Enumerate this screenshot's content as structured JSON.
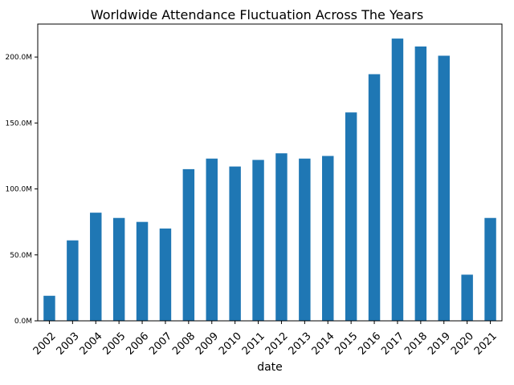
{
  "chart_data": {
    "type": "bar",
    "title": "Worldwide Attendance Fluctuation Across The Years",
    "xlabel": "date",
    "ylabel": "",
    "ylim": [
      0,
      225
    ],
    "ytick_values": [
      0,
      50,
      100,
      150,
      200
    ],
    "ytick_labels": [
      "0.0M",
      "50.0M",
      "100.0M",
      "150.0M",
      "200.0M"
    ],
    "bar_color": "#1f77b4",
    "categories": [
      "2002",
      "2003",
      "2004",
      "2005",
      "2006",
      "2007",
      "2008",
      "2009",
      "2010",
      "2011",
      "2012",
      "2013",
      "2014",
      "2015",
      "2016",
      "2017",
      "2018",
      "2019",
      "2020",
      "2021"
    ],
    "values": [
      19,
      61,
      82,
      78,
      75,
      70,
      115,
      123,
      117,
      122,
      127,
      123,
      125,
      158,
      187,
      214,
      208,
      201,
      35,
      78
    ],
    "value_unit": "M"
  }
}
